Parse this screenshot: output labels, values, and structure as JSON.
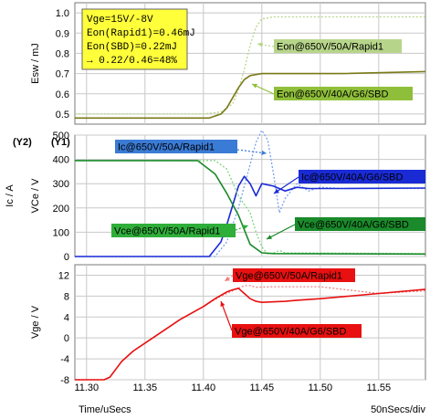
{
  "chart_data": [
    {
      "type": "line",
      "ylabel": "Esw / mJ",
      "ylim": [
        0.45,
        1.05
      ],
      "yticks": [
        0.5,
        0.6,
        0.7,
        0.8,
        0.9,
        1.0
      ],
      "xlim": [
        11.29,
        11.59
      ],
      "info_box": [
        "Vge=15V/-8V",
        "Eon(Rapid1)=0.46mJ",
        "Eon(SBD)=0.22mJ",
        "→ 0.22/0.46=48%"
      ],
      "series": [
        {
          "name": "Eon@650V/50A/Rapid1",
          "color": "#b7d58a",
          "dashed": true,
          "x": [
            11.29,
            11.4,
            11.415,
            11.425,
            11.43,
            11.435,
            11.44,
            11.445,
            11.45,
            11.46,
            11.48,
            11.52,
            11.59
          ],
          "y": [
            0.5,
            0.5,
            0.51,
            0.55,
            0.62,
            0.72,
            0.84,
            0.93,
            0.97,
            0.98,
            0.98,
            0.98,
            0.98
          ]
        },
        {
          "name": "Eon@650V/40A/G6/SBD",
          "color": "#7a7a18",
          "dashed": false,
          "x": [
            11.29,
            11.405,
            11.415,
            11.42,
            11.425,
            11.43,
            11.435,
            11.44,
            11.45,
            11.48,
            11.52,
            11.59
          ],
          "y": [
            0.48,
            0.48,
            0.5,
            0.53,
            0.58,
            0.63,
            0.67,
            0.69,
            0.7,
            0.7,
            0.7,
            0.71
          ]
        }
      ]
    },
    {
      "type": "line",
      "y2_marker": "(Y2)",
      "y1_marker": "(Y1)",
      "ylabel_y2": "Ic / A",
      "ylabel_y1": "VCe / V",
      "ylim": [
        0,
        500
      ],
      "yticks": [
        0,
        100,
        200,
        300,
        400,
        500
      ],
      "y2ticks": [
        0,
        10,
        20,
        30,
        40,
        50
      ],
      "xlim": [
        11.29,
        11.59
      ],
      "series": [
        {
          "name": "Ic@650V/50A/Rapid1",
          "color": "#7aa0f0",
          "dashed": true,
          "x": [
            11.29,
            11.41,
            11.42,
            11.43,
            11.44,
            11.445,
            11.45,
            11.455,
            11.46,
            11.465,
            11.47,
            11.48,
            11.49,
            11.5,
            11.52,
            11.59
          ],
          "y": [
            0,
            0,
            60,
            200,
            380,
            470,
            520,
            480,
            340,
            180,
            240,
            300,
            270,
            285,
            280,
            280
          ]
        },
        {
          "name": "Ic@650V/40A/G6/SBD",
          "color": "#1a2bd6",
          "dashed": false,
          "x": [
            11.29,
            11.405,
            11.415,
            11.42,
            11.425,
            11.43,
            11.435,
            11.44,
            11.445,
            11.45,
            11.46,
            11.47,
            11.48,
            11.49,
            11.5,
            11.52,
            11.59
          ],
          "y": [
            0,
            0,
            60,
            130,
            210,
            290,
            330,
            300,
            250,
            300,
            290,
            270,
            285,
            280,
            280,
            280,
            282
          ]
        },
        {
          "name": "Vce@650V/50A/Rapid1",
          "color": "#7dd67d",
          "dashed": true,
          "x": [
            11.29,
            11.41,
            11.42,
            11.43,
            11.44,
            11.445,
            11.45,
            11.455,
            11.46,
            11.465,
            11.47,
            11.48,
            11.59
          ],
          "y": [
            395,
            395,
            360,
            250,
            180,
            100,
            40,
            10,
            15,
            25,
            15,
            15,
            12
          ]
        },
        {
          "name": "Vce@650V/40A/G6/SBD",
          "color": "#1a8a2a",
          "dashed": false,
          "x": [
            11.29,
            11.395,
            11.41,
            11.42,
            11.43,
            11.435,
            11.44,
            11.45,
            11.46,
            11.59
          ],
          "y": [
            395,
            395,
            340,
            260,
            170,
            110,
            50,
            15,
            12,
            10
          ]
        }
      ]
    },
    {
      "type": "line",
      "ylabel": "Vge / V",
      "ylim": [
        -8,
        14
      ],
      "yticks": [
        -8,
        -4,
        0,
        4,
        8,
        12
      ],
      "xlim": [
        11.29,
        11.59
      ],
      "xlabel": "Time/uSecs",
      "xticks": [
        11.3,
        11.35,
        11.4,
        11.45,
        11.5,
        11.55
      ],
      "xtick_labels": [
        "11.30",
        "11.35",
        "11.40",
        "11.45",
        "11.50",
        "11.55"
      ],
      "scale_note": "50nSecs/div",
      "series": [
        {
          "name": "Vge@650V/50A/Rapid1",
          "color": "#f08080",
          "dashed": true,
          "x": [
            11.29,
            11.315,
            11.32,
            11.33,
            11.34,
            11.36,
            11.38,
            11.4,
            11.415,
            11.425,
            11.43,
            11.435,
            11.44,
            11.445,
            11.46,
            11.5,
            11.55,
            11.59
          ],
          "y": [
            -8,
            -8,
            -7.5,
            -4.5,
            -2.5,
            0.5,
            3.5,
            6,
            8,
            9,
            9.5,
            10,
            10,
            9.7,
            9.8,
            9.8,
            8.5,
            9
          ]
        },
        {
          "name": "Vge@650V/40A/G6/SBD",
          "color": "#e81010",
          "dashed": false,
          "x": [
            11.29,
            11.315,
            11.32,
            11.33,
            11.34,
            11.36,
            11.38,
            11.4,
            11.41,
            11.42,
            11.425,
            11.43,
            11.435,
            11.44,
            11.445,
            11.45,
            11.47,
            11.48,
            11.5,
            11.55,
            11.59
          ],
          "y": [
            -8,
            -8,
            -7.5,
            -4.5,
            -2.5,
            0.5,
            3.5,
            6,
            7.5,
            8.8,
            9.2,
            9.5,
            8.5,
            7.5,
            7.0,
            6.8,
            7.0,
            7.2,
            7.5,
            8.5,
            9.3
          ]
        }
      ]
    }
  ]
}
